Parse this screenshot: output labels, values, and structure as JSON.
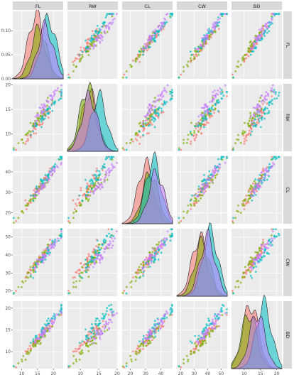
{
  "chart_data": {
    "type": "scatter",
    "variables": [
      "FL",
      "RW",
      "CL",
      "CW",
      "BD"
    ],
    "panel_layout": "5x5 scatterplot matrix; diagonal panels show density curves",
    "grid": true,
    "panel_background": "#ebebeb",
    "strip_background": "#d9d9d9",
    "series_colors": [
      "#F8766D",
      "#7CAE00",
      "#00BFC4",
      "#C77CFF"
    ],
    "legend": "none",
    "axis_ranges": {
      "FL": [
        7.2,
        23.1
      ],
      "RW": [
        6.5,
        20.2
      ],
      "CL": [
        14.7,
        47.6
      ],
      "CW": [
        17.1,
        54.6
      ],
      "BD": [
        6.1,
        21.6
      ]
    },
    "x_ticks": {
      "FL": [
        10,
        15,
        20
      ],
      "RW": [
        10,
        15,
        20
      ],
      "CL": [
        20,
        30,
        40
      ],
      "CW": [
        20,
        30,
        40,
        50
      ],
      "BD": [
        10,
        15,
        20
      ]
    },
    "y_ticks": {
      "FL": [
        "0.00",
        "0.05",
        "0.10"
      ],
      "RW": [
        10,
        15,
        20
      ],
      "CL": [
        20,
        30,
        40
      ],
      "CW": [
        20,
        30,
        40,
        50
      ],
      "BD": [
        10,
        15,
        20
      ]
    },
    "density_ylim": [
      0,
      0.14
    ],
    "density_peaks": {
      "FL": [
        [
          14.5,
          0.135
        ],
        [
          15.5,
          0.105
        ],
        [
          18.5,
          0.125
        ],
        [
          17.5,
          0.11
        ]
      ],
      "RW": [
        [
          12.5,
          0.32
        ],
        [
          12.0,
          0.35
        ],
        [
          15.0,
          0.3
        ],
        [
          12.5,
          0.3
        ]
      ],
      "CL": [
        [
          30,
          0.065
        ],
        [
          33,
          0.055
        ],
        [
          35,
          0.07
        ],
        [
          37,
          0.055
        ]
      ],
      "CW": [
        [
          34,
          0.055
        ],
        [
          36,
          0.05
        ],
        [
          42,
          0.06
        ],
        [
          40,
          0.055
        ]
      ],
      "BD": [
        [
          12,
          0.14
        ],
        [
          11.5,
          0.12
        ],
        [
          16,
          0.14
        ],
        [
          14,
          0.12
        ]
      ]
    }
  }
}
